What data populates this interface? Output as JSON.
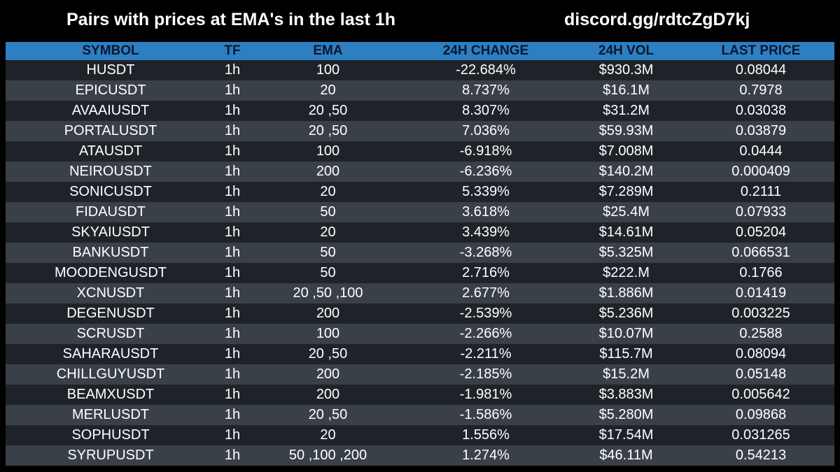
{
  "header": {
    "title": "Pairs with prices at EMA's in the last 1h",
    "discord": "discord.gg/rdtcZgD7kj"
  },
  "colors": {
    "background": "#000000",
    "header_bar": "#2d7fc1",
    "header_text": "#0b1730",
    "row_dark": "#1f2329",
    "row_light": "#3a4048",
    "text": "#ffffff"
  },
  "table": {
    "columns": [
      "SYMBOL",
      "TF",
      "EMA",
      "24H CHANGE",
      "24H VOL",
      "LAST PRICE"
    ],
    "rows": [
      [
        "HUSDT",
        "1h",
        "100",
        "-22.684%",
        "$930.3M",
        "0.08044"
      ],
      [
        "EPICUSDT",
        "1h",
        "20",
        "8.737%",
        "$16.1M",
        "0.7978"
      ],
      [
        "AVAAIUSDT",
        "1h",
        "20 ,50",
        "8.307%",
        "$31.2M",
        "0.03038"
      ],
      [
        "PORTALUSDT",
        "1h",
        "20 ,50",
        "7.036%",
        "$59.93M",
        "0.03879"
      ],
      [
        "ATAUSDT",
        "1h",
        "100",
        "-6.918%",
        "$7.008M",
        "0.0444"
      ],
      [
        "NEIROUSDT",
        "1h",
        "200",
        "-6.236%",
        "$140.2M",
        "0.000409"
      ],
      [
        "SONICUSDT",
        "1h",
        "20",
        "5.339%",
        "$7.289M",
        "0.2111"
      ],
      [
        "FIDAUSDT",
        "1h",
        "50",
        "3.618%",
        "$25.4M",
        "0.07933"
      ],
      [
        "SKYAIUSDT",
        "1h",
        "20",
        "3.439%",
        "$14.61M",
        "0.05204"
      ],
      [
        "BANKUSDT",
        "1h",
        "50",
        "-3.268%",
        "$5.325M",
        "0.066531"
      ],
      [
        "MOODENGUSDT",
        "1h",
        "50",
        "2.716%",
        "$222.M",
        "0.1766"
      ],
      [
        "XCNUSDT",
        "1h",
        "20 ,50 ,100",
        "2.677%",
        "$1.886M",
        "0.01419"
      ],
      [
        "DEGENUSDT",
        "1h",
        "200",
        "-2.539%",
        "$5.236M",
        "0.003225"
      ],
      [
        "SCRUSDT",
        "1h",
        "100",
        "-2.266%",
        "$10.07M",
        "0.2588"
      ],
      [
        "SAHARAUSDT",
        "1h",
        "20 ,50",
        "-2.211%",
        "$115.7M",
        "0.08094"
      ],
      [
        "CHILLGUYUSDT",
        "1h",
        "200",
        "-2.185%",
        "$15.2M",
        "0.05148"
      ],
      [
        "BEAMXUSDT",
        "1h",
        "200",
        "-1.981%",
        "$3.883M",
        "0.005642"
      ],
      [
        "MERLUSDT",
        "1h",
        "20 ,50",
        "-1.586%",
        "$5.280M",
        "0.09868"
      ],
      [
        "SOPHUSDT",
        "1h",
        "20",
        "1.556%",
        "$17.54M",
        "0.031265"
      ],
      [
        "SYRUPUSDT",
        "1h",
        "50 ,100 ,200",
        "1.274%",
        "$46.11M",
        "0.54213"
      ]
    ]
  }
}
